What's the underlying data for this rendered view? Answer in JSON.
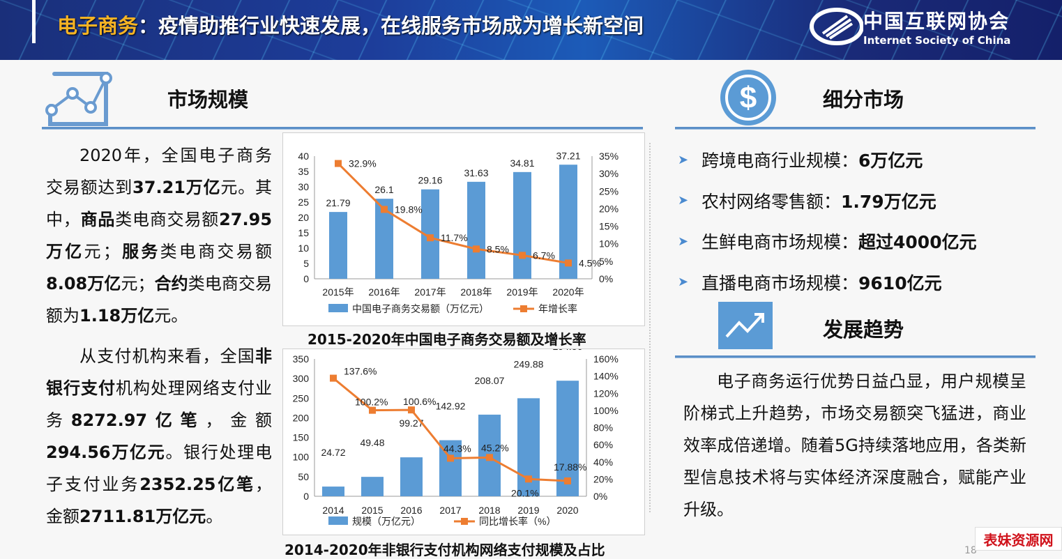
{
  "header": {
    "title_highlight": "电子商务",
    "title_rest": "：疫情助推行业快速发展，在线服务市场成为增长新空间",
    "logo_cn": "中国互联网协会",
    "logo_en": "Internet Society of China"
  },
  "left": {
    "section_title": "市场规模",
    "paragraphs": [
      [
        {
          "t": "2020年，全国电子商务交易额达到"
        },
        {
          "t": "37.21万亿",
          "b": true
        },
        {
          "t": "元。其中，"
        },
        {
          "t": "商品",
          "b": true
        },
        {
          "t": "类电商交易额"
        },
        {
          "t": "27.95万亿",
          "b": true
        },
        {
          "t": "元；"
        },
        {
          "t": "服务",
          "b": true
        },
        {
          "t": "类电商交易额"
        },
        {
          "t": "8.08万亿",
          "b": true
        },
        {
          "t": "元；"
        },
        {
          "t": "合约",
          "b": true
        },
        {
          "t": "类电商交易额为"
        },
        {
          "t": "1.18万亿",
          "b": true
        },
        {
          "t": "元。"
        }
      ],
      [
        {
          "t": "从支付机构来看，全国"
        },
        {
          "t": "非银行支付",
          "b": true
        },
        {
          "t": "机构处理网络支付业务"
        },
        {
          "t": "8272.97亿笔",
          "b": true
        },
        {
          "t": "，金额"
        },
        {
          "t": "294.56万亿元",
          "b": true
        },
        {
          "t": "。银行处理电子支付业务"
        },
        {
          "t": "2352.25亿笔",
          "b": true
        },
        {
          "t": "，金额"
        },
        {
          "t": "2711.81万亿元",
          "b": true
        },
        {
          "t": "。"
        }
      ]
    ]
  },
  "right": {
    "section_title": "细分市场",
    "bullets": [
      {
        "label": "跨境电商行业规模：",
        "value": "6万亿元"
      },
      {
        "label": "农村网络零售额：",
        "value": "1.79万亿元"
      },
      {
        "label": "生鲜电商市场规模：",
        "value": "超过4000亿元"
      },
      {
        "label": "直播电商市场规模：",
        "value": "9610亿元"
      }
    ],
    "trend_title": "发展趋势",
    "trend_text": "电子商务运行优势日益凸显，用户规模呈阶梯式上升趋势，市场交易额突飞猛进，商业效率成倍递增。随着5G持续落地应用，各类新型信息技术将与实体经济深度融合，赋能产业升级。"
  },
  "colors": {
    "bar": "#5b9bd5",
    "line": "#ed7d31",
    "rule": "#5b8fc7",
    "highlight": "#f5b324",
    "watermark": "#d0121b"
  },
  "watermark": "表妹资源网",
  "page_number": "18",
  "chart_data": [
    {
      "type": "bar",
      "title": "2015-2020年中国电子商务交易额及增长率",
      "categories": [
        "2015年",
        "2016年",
        "2017年",
        "2018年",
        "2019年",
        "2020年"
      ],
      "series": [
        {
          "name": "中国电子商务交易额（万亿元）",
          "type": "bar",
          "axis": "left",
          "values": [
            21.79,
            26.1,
            29.16,
            31.63,
            34.81,
            37.21
          ],
          "labels": [
            "21.79",
            "26.1",
            "29.16",
            "31.63",
            "34.81",
            "37.21"
          ]
        },
        {
          "name": "年增长率",
          "type": "line",
          "axis": "right",
          "values": [
            32.9,
            19.8,
            11.7,
            8.5,
            6.7,
            4.5
          ],
          "labels": [
            "32.9%",
            "19.8%",
            "11.7%",
            "8.5%",
            "6.7%",
            "4.5%"
          ]
        }
      ],
      "ylim": [
        0,
        40
      ],
      "yticks": [
        "0",
        "5",
        "10",
        "15",
        "20",
        "25",
        "30",
        "35",
        "40"
      ],
      "y2lim": [
        0,
        35
      ],
      "y2ticks": [
        "0%",
        "5%",
        "10%",
        "15%",
        "20%",
        "25%",
        "30%",
        "35%"
      ],
      "legend": "bottom"
    },
    {
      "type": "bar",
      "title": "2014-2020年非银行支付机构网络支付规模及占比",
      "categories": [
        "2014",
        "2015",
        "2016",
        "2017",
        "2018",
        "2019",
        "2020"
      ],
      "series": [
        {
          "name": "规模（万亿元）",
          "type": "bar",
          "axis": "left",
          "values": [
            24.72,
            49.48,
            99.27,
            142.92,
            208.07,
            249.88,
            294.56
          ],
          "labels": [
            "24.72",
            "49.48",
            "99.27",
            "142.92",
            "208.07",
            "249.88",
            "294.56"
          ]
        },
        {
          "name": "同比增长率（%）",
          "type": "line",
          "axis": "right",
          "values": [
            137.6,
            100.2,
            100.6,
            44.3,
            45.2,
            20.1,
            17.88
          ],
          "labels": [
            "137.6%",
            "100.2%",
            "100.6%",
            "44.3%",
            "45.2%",
            "20.1%",
            "17.88%"
          ]
        }
      ],
      "ylim": [
        0,
        350
      ],
      "yticks": [
        "0",
        "50",
        "100",
        "150",
        "200",
        "250",
        "300",
        "350"
      ],
      "y2lim": [
        0,
        160
      ],
      "y2ticks": [
        "0%",
        "20%",
        "40%",
        "60%",
        "80%",
        "100%",
        "120%",
        "140%",
        "160%"
      ],
      "legend": "bottom"
    }
  ]
}
